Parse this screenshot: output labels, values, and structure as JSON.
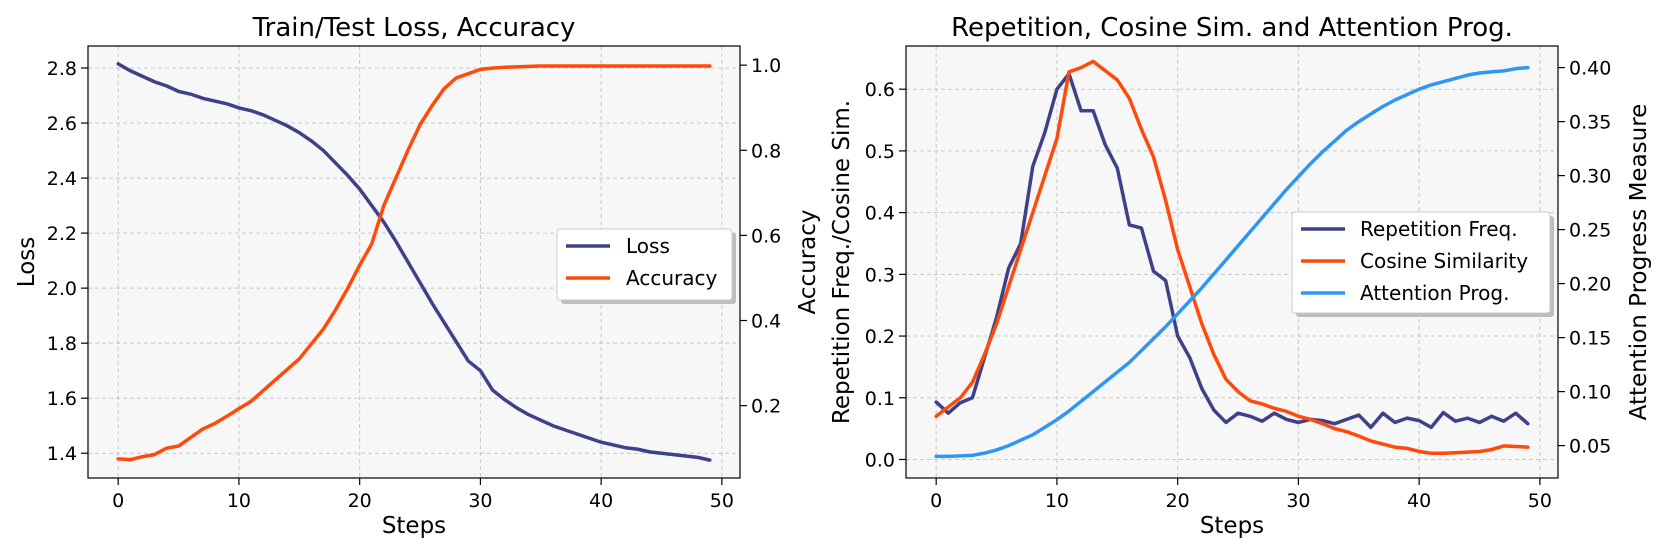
{
  "colors": {
    "loss": "#3e418a",
    "accuracy": "#fe4a0a",
    "repetition": "#3e418a",
    "cosine": "#fe4a0a",
    "attention": "#2e97f4"
  },
  "chart_data": [
    {
      "type": "line",
      "title": "Train/Test Loss, Accuracy",
      "xlabel": "Steps",
      "ylabel": "Loss",
      "ylabel_right": "Accuracy",
      "xlim": [
        -2.5,
        51.5
      ],
      "ylim": [
        1.31,
        2.88
      ],
      "ylim_right": [
        0.03,
        1.045
      ],
      "xticks": [
        0,
        10,
        20,
        30,
        40,
        50
      ],
      "yticks": [
        1.4,
        1.6,
        1.8,
        2.0,
        2.2,
        2.4,
        2.6,
        2.8
      ],
      "yticks_right": [
        0.2,
        0.4,
        0.6,
        0.8,
        1.0
      ],
      "legend": [
        "Loss",
        "Accuracy"
      ],
      "legend_position": "center-right",
      "series": [
        {
          "name": "Loss",
          "axis": "left",
          "values": [
            2.815,
            2.79,
            2.77,
            2.75,
            2.735,
            2.715,
            2.705,
            2.69,
            2.68,
            2.67,
            2.655,
            2.645,
            2.63,
            2.61,
            2.59,
            2.565,
            2.535,
            2.5,
            2.455,
            2.41,
            2.36,
            2.3,
            2.24,
            2.17,
            2.095,
            2.02,
            1.945,
            1.875,
            1.805,
            1.735,
            1.7,
            1.63,
            1.595,
            1.565,
            1.54,
            1.52,
            1.5,
            1.485,
            1.47,
            1.455,
            1.44,
            1.43,
            1.42,
            1.415,
            1.405,
            1.4,
            1.395,
            1.39,
            1.385,
            1.375
          ]
        },
        {
          "name": "Accuracy",
          "axis": "right",
          "values": [
            0.075,
            0.073,
            0.08,
            0.085,
            0.1,
            0.105,
            0.125,
            0.145,
            0.158,
            0.175,
            0.193,
            0.21,
            0.235,
            0.26,
            0.285,
            0.31,
            0.345,
            0.38,
            0.425,
            0.475,
            0.53,
            0.58,
            0.67,
            0.735,
            0.8,
            0.86,
            0.905,
            0.945,
            0.97,
            0.98,
            0.99,
            0.993,
            0.995,
            0.996,
            0.997,
            0.998,
            0.998,
            0.998,
            0.998,
            0.998,
            0.998,
            0.998,
            0.998,
            0.998,
            0.998,
            0.998,
            0.998,
            0.998,
            0.998,
            0.998
          ]
        }
      ]
    },
    {
      "type": "line",
      "title": "Repetition, Cosine Sim. and Attention Prog.",
      "xlabel": "Steps",
      "ylabel": "Repetition Freq./Cosine Sim.",
      "ylabel_right": "Attention Progress Measure",
      "xlim": [
        -2.5,
        51.5
      ],
      "ylim": [
        -0.03,
        0.67
      ],
      "ylim_right": [
        0.02,
        0.42
      ],
      "xticks": [
        0,
        10,
        20,
        30,
        40,
        50
      ],
      "yticks": [
        0.0,
        0.1,
        0.2,
        0.3,
        0.4,
        0.5,
        0.6
      ],
      "yticks_right": [
        0.05,
        0.1,
        0.15,
        0.2,
        0.25,
        0.3,
        0.35,
        0.4
      ],
      "legend": [
        "Repetition Freq.",
        "Cosine Similarity",
        "Attention Prog."
      ],
      "legend_position": "center-right",
      "series": [
        {
          "name": "Repetition Freq.",
          "axis": "left",
          "values": [
            0.093,
            0.075,
            0.092,
            0.1,
            0.165,
            0.23,
            0.31,
            0.35,
            0.475,
            0.53,
            0.6,
            0.625,
            0.565,
            0.565,
            0.51,
            0.472,
            0.38,
            0.375,
            0.305,
            0.29,
            0.2,
            0.165,
            0.115,
            0.08,
            0.06,
            0.075,
            0.07,
            0.062,
            0.075,
            0.065,
            0.06,
            0.065,
            0.063,
            0.058,
            0.065,
            0.072,
            0.052,
            0.075,
            0.06,
            0.067,
            0.063,
            0.052,
            0.076,
            0.062,
            0.067,
            0.06,
            0.07,
            0.062,
            0.075,
            0.058
          ]
        },
        {
          "name": "Cosine Similarity",
          "axis": "left",
          "values": [
            0.07,
            0.085,
            0.1,
            0.125,
            0.17,
            0.22,
            0.28,
            0.34,
            0.4,
            0.46,
            0.52,
            0.628,
            0.635,
            0.645,
            0.63,
            0.615,
            0.585,
            0.535,
            0.49,
            0.42,
            0.34,
            0.28,
            0.22,
            0.17,
            0.13,
            0.11,
            0.095,
            0.09,
            0.083,
            0.078,
            0.07,
            0.065,
            0.058,
            0.05,
            0.045,
            0.038,
            0.03,
            0.025,
            0.02,
            0.018,
            0.013,
            0.01,
            0.01,
            0.011,
            0.012,
            0.013,
            0.016,
            0.022,
            0.021,
            0.02
          ]
        },
        {
          "name": "Attention Prog.",
          "axis": "right",
          "values": [
            0.04,
            0.04,
            0.0405,
            0.041,
            0.043,
            0.046,
            0.05,
            0.055,
            0.06,
            0.067,
            0.074,
            0.082,
            0.091,
            0.1,
            0.109,
            0.118,
            0.127,
            0.138,
            0.149,
            0.16,
            0.172,
            0.184,
            0.196,
            0.209,
            0.222,
            0.235,
            0.248,
            0.261,
            0.274,
            0.287,
            0.299,
            0.311,
            0.322,
            0.332,
            0.342,
            0.35,
            0.357,
            0.364,
            0.37,
            0.375,
            0.38,
            0.384,
            0.387,
            0.39,
            0.393,
            0.395,
            0.396,
            0.397,
            0.399,
            0.4
          ]
        }
      ]
    }
  ]
}
